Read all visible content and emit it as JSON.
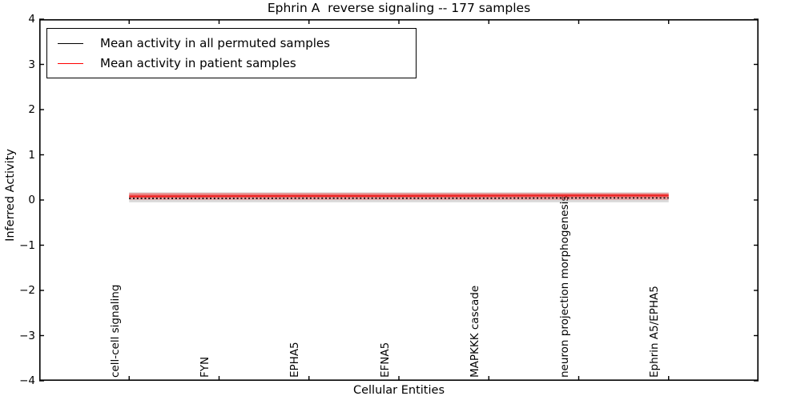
{
  "title": "Ephrin A  reverse signaling -- 177 samples",
  "axes": {
    "ylabel": "Inferred Activity",
    "xlabel": "Cellular Entities",
    "y_ticks": [
      "4",
      "3",
      "2",
      "1",
      "0",
      "−1",
      "−2",
      "−3",
      "−4"
    ],
    "x_ticks": [
      "cell-cell signaling",
      "FYN",
      "EPHA5",
      "EFNA5",
      "MAPKKK cascade",
      "neuron projection morphogenesis",
      "Ephrin A5/EPHA5"
    ]
  },
  "legend": {
    "items": [
      {
        "label": "Mean activity in all permuted samples",
        "color": "#000000"
      },
      {
        "label": "Mean activity in patient samples",
        "color": "#ff0000"
      }
    ]
  },
  "chart_data": {
    "type": "line",
    "title": "Ephrin A  reverse signaling -- 177 samples",
    "xlabel": "Cellular Entities",
    "ylabel": "Inferred Activity",
    "categories": [
      "cell-cell signaling",
      "FYN",
      "EPHA5",
      "EFNA5",
      "MAPKKK cascade",
      "neuron projection morphogenesis",
      "Ephrin A5/EPHA5"
    ],
    "ylim": [
      -4,
      4
    ],
    "yticks": [
      4,
      3,
      2,
      1,
      0,
      -1,
      -2,
      -3,
      -4
    ],
    "grid": false,
    "legend_position": "upper left",
    "series": [
      {
        "name": "Mean activity in all permuted samples",
        "color": "#000000",
        "linestyle": "dotted",
        "values": [
          0.035,
          0.035,
          0.04,
          0.04,
          0.04,
          0.045,
          0.045
        ],
        "bands": [
          {
            "low": -0.05,
            "high": 0.17,
            "color": "rgba(120,120,120,0.28)"
          }
        ]
      },
      {
        "name": "Mean activity in patient samples",
        "color": "#ed2121",
        "linestyle": "solid",
        "values": [
          0.08,
          0.085,
          0.09,
          0.09,
          0.095,
          0.1,
          0.1
        ],
        "bands": [
          {
            "low": 0.0,
            "high": 0.16,
            "color": "rgba(255,30,30,0.25)"
          },
          {
            "low": 0.05,
            "high": 0.14,
            "color": "rgba(255,30,30,0.32)"
          }
        ]
      }
    ]
  }
}
